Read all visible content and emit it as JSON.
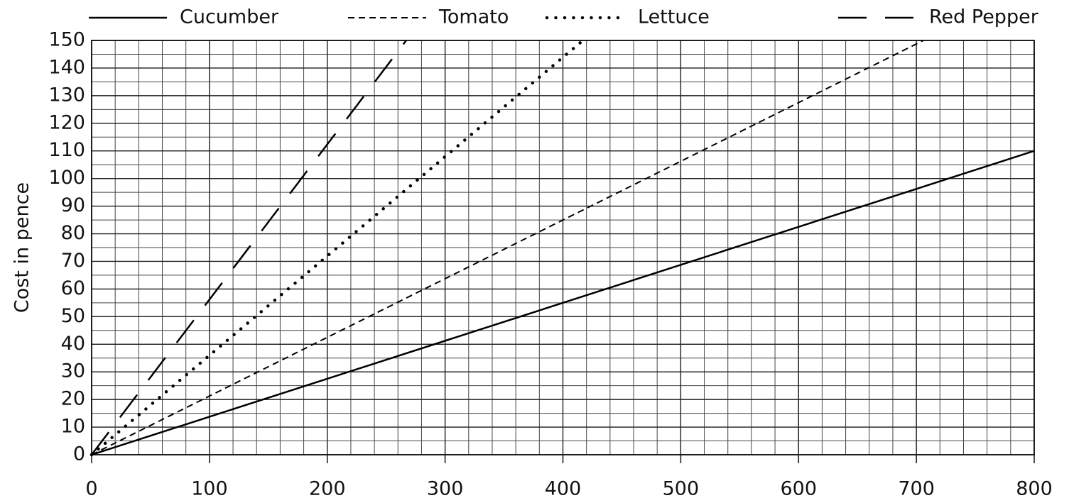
{
  "chart_data": {
    "type": "line",
    "ylabel": "Cost in pence",
    "series": [
      {
        "name": "Cucumber",
        "color": "#000000",
        "style": "solid",
        "x": [
          0,
          800
        ],
        "values": [
          0,
          110
        ]
      },
      {
        "name": "Tomato",
        "color": "#000000",
        "style": "dashed",
        "x": [
          0,
          706
        ],
        "values": [
          0,
          150
        ]
      },
      {
        "name": "Lettuce",
        "color": "#000000",
        "style": "dotted",
        "x": [
          0,
          417
        ],
        "values": [
          0,
          150
        ]
      },
      {
        "name": "Red Pepper",
        "color": "#000000",
        "style": "longdash",
        "x": [
          0,
          267
        ],
        "values": [
          0,
          150
        ]
      }
    ],
    "xlim": [
      0,
      800
    ],
    "xticks": [
      0,
      100,
      200,
      300,
      400,
      500,
      600,
      700,
      800
    ],
    "ylim": [
      0,
      150
    ],
    "yticks": [
      0,
      10,
      20,
      30,
      40,
      50,
      60,
      70,
      80,
      90,
      100,
      110,
      120,
      130,
      140,
      150
    ],
    "grid": true,
    "xminor_step": 20,
    "yminor_step": 5,
    "legend": "top"
  }
}
